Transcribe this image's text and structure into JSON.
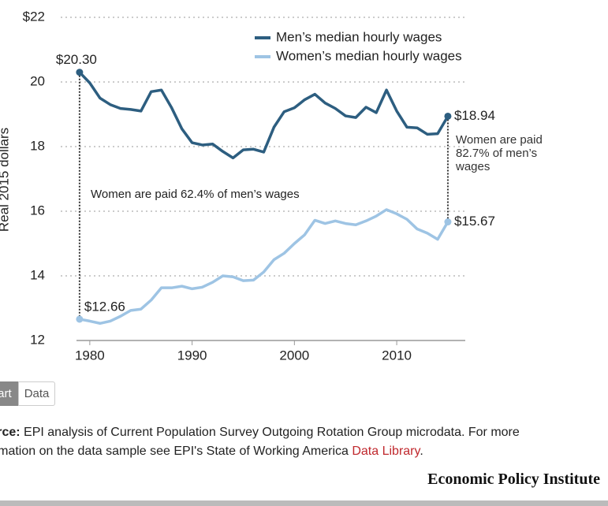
{
  "chart_data": {
    "type": "line",
    "y_label": "Real 2015 dollars",
    "x": [
      1979,
      1980,
      1981,
      1982,
      1983,
      1984,
      1985,
      1986,
      1987,
      1988,
      1989,
      1990,
      1991,
      1992,
      1993,
      1994,
      1995,
      1996,
      1997,
      1998,
      1999,
      2000,
      2001,
      2002,
      2003,
      2004,
      2005,
      2006,
      2007,
      2008,
      2009,
      2010,
      2011,
      2012,
      2013,
      2014,
      2015
    ],
    "series": [
      {
        "name": "Men’s median hourly wages",
        "color": "#2d5e80",
        "values": [
          20.3,
          19.97,
          19.5,
          19.3,
          19.18,
          19.15,
          19.1,
          19.7,
          19.75,
          19.2,
          18.55,
          18.12,
          18.05,
          18.08,
          17.85,
          17.65,
          17.9,
          17.92,
          17.83,
          18.6,
          19.08,
          19.2,
          19.45,
          19.62,
          19.35,
          19.18,
          18.95,
          18.9,
          19.22,
          19.05,
          19.75,
          19.1,
          18.6,
          18.58,
          18.38,
          18.4,
          18.94
        ],
        "value_labels": [
          "$20.30",
          null,
          null,
          null,
          null,
          null,
          null,
          null,
          null,
          null,
          null,
          null,
          null,
          null,
          null,
          null,
          null,
          null,
          null,
          null,
          null,
          null,
          null,
          null,
          null,
          null,
          null,
          null,
          null,
          null,
          null,
          null,
          null,
          null,
          null,
          null,
          "$18.94"
        ]
      },
      {
        "name": "Women’s median hourly wages",
        "color": "#9ec4e4",
        "values": [
          12.66,
          12.6,
          12.53,
          12.6,
          12.75,
          12.93,
          12.97,
          13.25,
          13.63,
          13.63,
          13.68,
          13.6,
          13.65,
          13.8,
          14.0,
          13.97,
          13.85,
          13.87,
          14.12,
          14.5,
          14.7,
          15.0,
          15.27,
          15.72,
          15.62,
          15.7,
          15.62,
          15.58,
          15.7,
          15.85,
          16.05,
          15.92,
          15.75,
          15.45,
          15.32,
          15.13,
          15.67
        ],
        "value_labels": [
          "$12.66",
          null,
          null,
          null,
          null,
          null,
          null,
          null,
          null,
          null,
          null,
          null,
          null,
          null,
          null,
          null,
          null,
          null,
          null,
          null,
          null,
          null,
          null,
          null,
          null,
          null,
          null,
          null,
          null,
          null,
          null,
          null,
          null,
          null,
          null,
          null,
          "$15.67"
        ]
      }
    ],
    "xlim": [
      1978.7,
      2016.7
    ],
    "xticks": [
      1980,
      1990,
      2000,
      2010
    ],
    "ylim": [
      12,
      22
    ],
    "yticks": [
      12,
      14,
      16,
      18,
      20,
      {
        "value": 22,
        "label": "$22"
      }
    ],
    "grid": true,
    "annotations": [
      "Women are paid 62.4% of men’s wages",
      "Women are paid 82.7% of men’s wages"
    ]
  },
  "tabs": [
    "Chart",
    "Data"
  ],
  "source": {
    "label": "Source:",
    "text": "EPI analysis of Current Population Survey Outgoing Rotation Group microdata. For more information on the data sample see EPI's State of Working America",
    "link": "Data Library",
    "end": "."
  },
  "organization": "Economic Policy Institute"
}
